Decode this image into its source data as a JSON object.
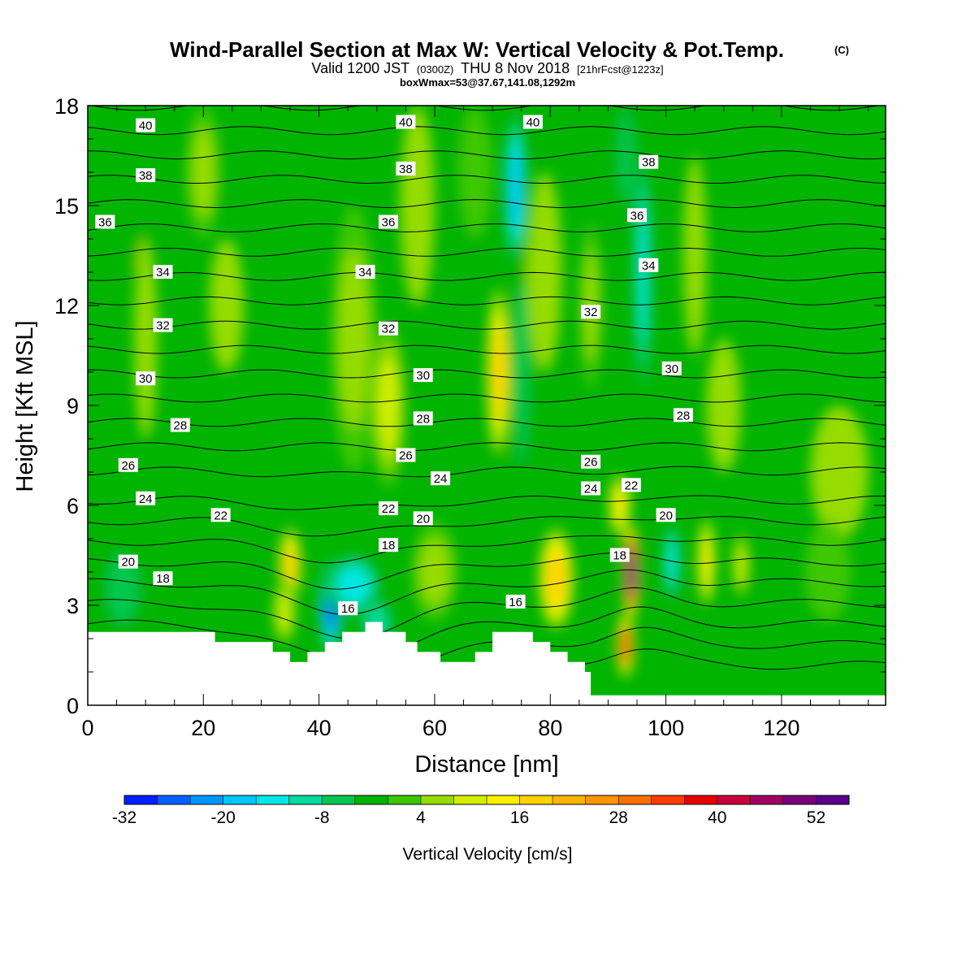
{
  "title": {
    "main": "Wind-Parallel Section at Max W: Vertical Velocity & Pot.Temp.",
    "copyright": "(C)",
    "valid_prefix": "Valid 1200 JST",
    "valid_z": "(0300Z)",
    "valid_date": "THU 8 Nov 2018",
    "valid_fcst": "[21hrFcst@1223z]",
    "box": "boxWmax=53@37.67,141.08,1292m"
  },
  "colors": {
    "terrain": "#ffffff",
    "contour_line": "#000000",
    "frame": "#000000",
    "colorbar": [
      "#0020ff",
      "#0060ff",
      "#0096ff",
      "#00c8ff",
      "#00e8e6",
      "#00dca0",
      "#00c850",
      "#00b400",
      "#3cc800",
      "#96dc00",
      "#d2ef00",
      "#fff000",
      "#ffd200",
      "#ffb400",
      "#ff9600",
      "#ff6e00",
      "#ff3c00",
      "#e60000",
      "#c8003c",
      "#a00064",
      "#780078",
      "#5a008c"
    ]
  },
  "chart_data": {
    "type": "heatmap",
    "xlabel": "Distance [nm]",
    "ylabel": "Height [Kft MSL]",
    "xlim": [
      0,
      138
    ],
    "ylim": [
      0,
      18
    ],
    "xticks": [
      "0",
      "20",
      "40",
      "60",
      "80",
      "100",
      "120"
    ],
    "yticks": [
      "0",
      "3",
      "6",
      "9",
      "12",
      "15",
      "18"
    ],
    "colorbar": {
      "title": "Vertical Velocity [cm/s]",
      "min": -32,
      "max": 56,
      "step": 4,
      "labels": [
        "-32",
        "-20",
        "-8",
        "4",
        "16",
        "28",
        "40",
        "52"
      ]
    },
    "terrain_profile": [
      [
        0,
        2.2
      ],
      [
        22,
        2.2
      ],
      [
        22,
        1.9
      ],
      [
        32,
        1.9
      ],
      [
        32,
        1.6
      ],
      [
        35,
        1.6
      ],
      [
        35,
        1.3
      ],
      [
        38,
        1.3
      ],
      [
        38,
        1.6
      ],
      [
        41,
        1.6
      ],
      [
        41,
        1.9
      ],
      [
        44,
        1.9
      ],
      [
        44,
        2.2
      ],
      [
        48,
        2.2
      ],
      [
        48,
        2.5
      ],
      [
        51,
        2.5
      ],
      [
        51,
        2.2
      ],
      [
        55,
        2.2
      ],
      [
        55,
        1.9
      ],
      [
        57,
        1.9
      ],
      [
        57,
        1.6
      ],
      [
        61,
        1.6
      ],
      [
        61,
        1.3
      ],
      [
        67,
        1.3
      ],
      [
        67,
        1.6
      ],
      [
        70,
        1.6
      ],
      [
        70,
        2.2
      ],
      [
        77,
        2.2
      ],
      [
        77,
        1.9
      ],
      [
        80,
        1.9
      ],
      [
        80,
        1.6
      ],
      [
        83,
        1.6
      ],
      [
        83,
        1.3
      ],
      [
        86,
        1.3
      ],
      [
        86,
        1.0
      ],
      [
        87,
        1.0
      ],
      [
        87,
        0.3
      ],
      [
        138,
        0.3
      ]
    ],
    "vertical_velocity_cells": [
      {
        "x": 8,
        "y": 15.5,
        "w": -3,
        "sx": 3,
        "sy": 2.5
      },
      {
        "x": 10,
        "y": 11.0,
        "w": 5,
        "sx": 2,
        "sy": 3
      },
      {
        "x": 6,
        "y": 3.5,
        "w": -6,
        "sx": 4,
        "sy": 1.5
      },
      {
        "x": 20,
        "y": 16.0,
        "w": 6,
        "sx": 3,
        "sy": 2
      },
      {
        "x": 24,
        "y": 12.0,
        "w": 4,
        "sx": 3,
        "sy": 2
      },
      {
        "x": 35,
        "y": 4.2,
        "w": 18,
        "sx": 2,
        "sy": 1.2
      },
      {
        "x": 34,
        "y": 2.8,
        "w": 10,
        "sx": 2,
        "sy": 1.0
      },
      {
        "x": 42,
        "y": 3.0,
        "w": -28,
        "sx": 2,
        "sy": 1.5
      },
      {
        "x": 46,
        "y": 3.6,
        "w": -14,
        "sx": 5,
        "sy": 1.0
      },
      {
        "x": 50,
        "y": 2.5,
        "w": -10,
        "sx": 3,
        "sy": 0.8
      },
      {
        "x": 46,
        "y": 11.0,
        "w": 7,
        "sx": 4,
        "sy": 4
      },
      {
        "x": 52,
        "y": 9.0,
        "w": 10,
        "sx": 3,
        "sy": 2.5
      },
      {
        "x": 60,
        "y": 4.0,
        "w": 7,
        "sx": 4,
        "sy": 1.5
      },
      {
        "x": 57,
        "y": 15.0,
        "w": 4,
        "sx": 3,
        "sy": 3
      },
      {
        "x": 67,
        "y": 16.0,
        "w": 3,
        "sx": 3,
        "sy": 2
      },
      {
        "x": 71,
        "y": 10.0,
        "w": 16,
        "sx": 2,
        "sy": 2.5
      },
      {
        "x": 74,
        "y": 15.5,
        "w": -20,
        "sx": 2,
        "sy": 2.5
      },
      {
        "x": 75,
        "y": 10.0,
        "w": -8,
        "sx": 2,
        "sy": 4
      },
      {
        "x": 81,
        "y": 3.8,
        "w": 16,
        "sx": 3,
        "sy": 1.5
      },
      {
        "x": 79,
        "y": 13.0,
        "w": 4,
        "sx": 3,
        "sy": 3
      },
      {
        "x": 87,
        "y": 12.0,
        "w": 6,
        "sx": 2,
        "sy": 2.5
      },
      {
        "x": 94,
        "y": 4.0,
        "w": 53,
        "sx": 1.5,
        "sy": 1.4
      },
      {
        "x": 93,
        "y": 1.8,
        "w": 34,
        "sx": 1.5,
        "sy": 1.0
      },
      {
        "x": 92,
        "y": 6.0,
        "w": 14,
        "sx": 2,
        "sy": 1.0
      },
      {
        "x": 96,
        "y": 13.0,
        "w": -16,
        "sx": 1.5,
        "sy": 4
      },
      {
        "x": 93,
        "y": 16.5,
        "w": -6,
        "sx": 2,
        "sy": 2
      },
      {
        "x": 101,
        "y": 4.3,
        "w": -16,
        "sx": 1.5,
        "sy": 1.3
      },
      {
        "x": 107,
        "y": 4.3,
        "w": 12,
        "sx": 1.5,
        "sy": 1.3
      },
      {
        "x": 113,
        "y": 4.2,
        "w": 10,
        "sx": 1.5,
        "sy": 1.0
      },
      {
        "x": 105,
        "y": 13.5,
        "w": 5,
        "sx": 2,
        "sy": 3
      },
      {
        "x": 110,
        "y": 9.0,
        "w": 4,
        "sx": 3,
        "sy": 2
      },
      {
        "x": 130,
        "y": 7.0,
        "w": 5,
        "sx": 5,
        "sy": 2
      },
      {
        "x": 128,
        "y": 4.0,
        "w": 3,
        "sx": 4,
        "sy": 1.5
      }
    ],
    "pot_temp_contours": {
      "levels": [
        16,
        17,
        18,
        19,
        20,
        21,
        22,
        23,
        24,
        25,
        26,
        27,
        28,
        29,
        30,
        31,
        32,
        33,
        34,
        35,
        36,
        37,
        38,
        39,
        40
      ],
      "labels": [
        {
          "text": "40",
          "x": 10,
          "y": 17.4
        },
        {
          "text": "40",
          "x": 55,
          "y": 17.5
        },
        {
          "text": "40",
          "x": 77,
          "y": 17.5
        },
        {
          "text": "38",
          "x": 10,
          "y": 15.9
        },
        {
          "text": "38",
          "x": 55,
          "y": 16.1
        },
        {
          "text": "38",
          "x": 97,
          "y": 16.3
        },
        {
          "text": "36",
          "x": 3,
          "y": 14.5
        },
        {
          "text": "36",
          "x": 52,
          "y": 14.5
        },
        {
          "text": "36",
          "x": 95,
          "y": 14.7
        },
        {
          "text": "34",
          "x": 13,
          "y": 13.0
        },
        {
          "text": "34",
          "x": 48,
          "y": 13.0
        },
        {
          "text": "34",
          "x": 97,
          "y": 13.2
        },
        {
          "text": "32",
          "x": 13,
          "y": 11.4
        },
        {
          "text": "32",
          "x": 52,
          "y": 11.3
        },
        {
          "text": "32",
          "x": 87,
          "y": 11.8
        },
        {
          "text": "30",
          "x": 10,
          "y": 9.8
        },
        {
          "text": "30",
          "x": 58,
          "y": 9.9
        },
        {
          "text": "30",
          "x": 101,
          "y": 10.1
        },
        {
          "text": "28",
          "x": 16,
          "y": 8.4
        },
        {
          "text": "28",
          "x": 58,
          "y": 8.6
        },
        {
          "text": "28",
          "x": 103,
          "y": 8.7
        },
        {
          "text": "26",
          "x": 7,
          "y": 7.2
        },
        {
          "text": "26",
          "x": 55,
          "y": 7.5
        },
        {
          "text": "26",
          "x": 87,
          "y": 7.3
        },
        {
          "text": "24",
          "x": 10,
          "y": 6.2
        },
        {
          "text": "24",
          "x": 61,
          "y": 6.8
        },
        {
          "text": "24",
          "x": 87,
          "y": 6.5
        },
        {
          "text": "22",
          "x": 23,
          "y": 5.7
        },
        {
          "text": "22",
          "x": 52,
          "y": 5.9
        },
        {
          "text": "22",
          "x": 94,
          "y": 6.6
        },
        {
          "text": "20",
          "x": 7,
          "y": 4.3
        },
        {
          "text": "20",
          "x": 58,
          "y": 5.6
        },
        {
          "text": "20",
          "x": 100,
          "y": 5.7
        },
        {
          "text": "18",
          "x": 13,
          "y": 3.8
        },
        {
          "text": "18",
          "x": 52,
          "y": 4.8
        },
        {
          "text": "18",
          "x": 92,
          "y": 4.5
        },
        {
          "text": "16",
          "x": 45,
          "y": 2.9
        },
        {
          "text": "16",
          "x": 74,
          "y": 3.1
        }
      ]
    }
  }
}
